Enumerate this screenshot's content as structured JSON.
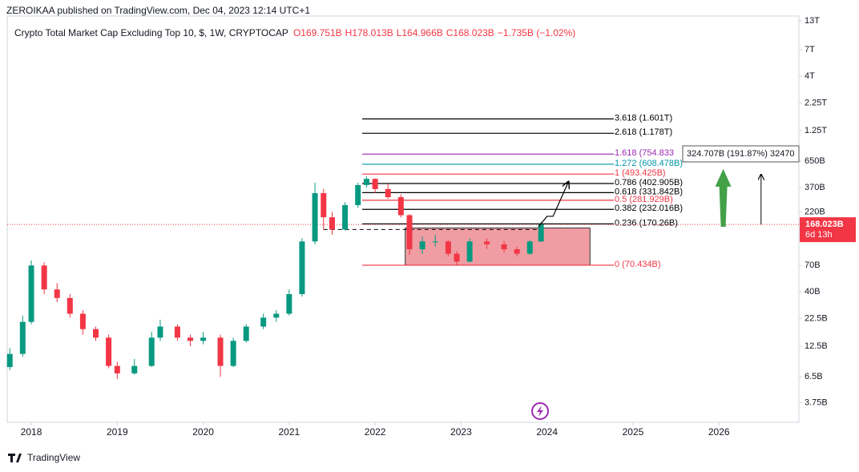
{
  "header": "ZEROIKAA published on TradingView.com, Dec 04, 2023 12:14 UTC+1",
  "footer": "TradingView",
  "chart_data": {
    "type": "candlestick",
    "title": "Crypto Total Market Cap Excluding Top 10, $, 1W, CRYPTOCAP",
    "legend_values": [
      "O169.751B",
      "H178.013B",
      "L164.966B",
      "C168.023B",
      "−1.735B (−1.02%)"
    ],
    "log_scale": true,
    "up_color": "#089981",
    "down_color": "#f23645",
    "x": [
      2017.75,
      2017.9,
      2018.0,
      2018.15,
      2018.3,
      2018.45,
      2018.6,
      2018.75,
      2018.9,
      2019.0,
      2019.2,
      2019.4,
      2019.5,
      2019.7,
      2019.85,
      2020.0,
      2020.2,
      2020.35,
      2020.5,
      2020.7,
      2020.85,
      2021.0,
      2021.15,
      2021.3,
      2021.4,
      2021.5,
      2021.65,
      2021.8,
      2021.9,
      2022.0,
      2022.15,
      2022.3,
      2022.4,
      2022.55,
      2022.7,
      2022.85,
      2022.95,
      2023.1,
      2023.3,
      2023.5,
      2023.65,
      2023.8,
      2023.93
    ],
    "open": [
      8,
      10.6,
      21,
      70,
      42,
      35,
      25,
      18,
      15,
      8.2,
      7,
      8.2,
      15,
      19,
      15,
      14,
      15,
      8.2,
      14,
      19,
      23,
      25,
      38,
      117,
      328,
      196,
      151,
      254,
      390,
      445,
      358,
      301,
      205,
      99,
      117,
      117,
      90,
      76,
      117,
      110,
      99,
      90,
      117
    ],
    "high": [
      12,
      24,
      78,
      75,
      48,
      38,
      27,
      19,
      16,
      9,
      9.5,
      17,
      22,
      20,
      16,
      17,
      16,
      15,
      20,
      25,
      27,
      42,
      125,
      410,
      360,
      220,
      270,
      410,
      470,
      450,
      400,
      320,
      210,
      130,
      135,
      120,
      95,
      125,
      125,
      118,
      104,
      120,
      178
    ],
    "low": [
      7.5,
      10,
      20,
      38,
      32,
      23,
      16,
      14,
      7.8,
      6.2,
      6.8,
      8,
      14,
      14,
      12.5,
      13,
      6.5,
      8,
      13.5,
      18,
      21,
      24,
      36,
      110,
      150,
      135,
      148,
      240,
      370,
      330,
      290,
      195,
      88,
      90,
      105,
      85,
      70,
      75,
      100,
      92,
      86,
      88,
      115
    ],
    "close": [
      10.6,
      21,
      70,
      42,
      35,
      25,
      18,
      15,
      8.2,
      7,
      8.2,
      15,
      19,
      15,
      14,
      15,
      8.2,
      14,
      19,
      23,
      25,
      38,
      117,
      328,
      196,
      151,
      254,
      390,
      445,
      358,
      301,
      205,
      99,
      117,
      117,
      90,
      76,
      117,
      110,
      99,
      90,
      117,
      168
    ],
    "xlim": [
      2017.72,
      2026.93
    ],
    "xticks": [
      2018,
      2019,
      2020,
      2021,
      2022,
      2023,
      2024,
      2025,
      2026
    ],
    "ylim": [
      2.46,
      14400
    ],
    "yticks": [
      {
        "value": 13000,
        "label": "13T"
      },
      {
        "value": 7000,
        "label": "7T"
      },
      {
        "value": 4000,
        "label": "4T"
      },
      {
        "value": 2250,
        "label": "2.25T"
      },
      {
        "value": 1250,
        "label": "1.25T"
      },
      {
        "value": 650,
        "label": "650B"
      },
      {
        "value": 370,
        "label": "370B"
      },
      {
        "value": 220,
        "label": "220B"
      },
      {
        "value": 70,
        "label": "70B"
      },
      {
        "value": 40,
        "label": "40B"
      },
      {
        "value": 22.5,
        "label": "22.5B"
      },
      {
        "value": 12.5,
        "label": "12.5B"
      },
      {
        "value": 6.5,
        "label": "6.5B"
      },
      {
        "value": 3.75,
        "label": "3.75B"
      }
    ],
    "current_price": {
      "value": 168.023,
      "label": "168.023B",
      "countdown": "6d 13h",
      "color": "#f23645"
    },
    "fib_x": [
      2021.85,
      2024.8
    ],
    "fib_levels": [
      {
        "value": 1601,
        "label": "3.618 (1.601T)",
        "color": "#000000"
      },
      {
        "value": 1178,
        "label": "2.618 (1.178T)",
        "color": "#000000"
      },
      {
        "value": 754.833,
        "label": "1.618 (754.833",
        "color": "#9c27b0"
      },
      {
        "value": 608.478,
        "label": "1.272 (608.478B)",
        "color": "#0097a7"
      },
      {
        "value": 493.425,
        "label": "1 (493.425B)",
        "color": "#f23645"
      },
      {
        "value": 402.905,
        "label": "0.786 (402.905B)",
        "color": "#000000"
      },
      {
        "value": 331.842,
        "label": "0.618 (331.842B)",
        "color": "#000000"
      },
      {
        "value": 281.929,
        "label": "0.5 (281.929B)",
        "color": "#f23645"
      },
      {
        "value": 232.016,
        "label": "0.382 (232.016B)",
        "color": "#000000"
      },
      {
        "value": 170.26,
        "label": "0.236 (170.26B)",
        "color": "#000000"
      },
      {
        "value": 70.434,
        "label": "0 (70.434B)",
        "color": "#f23645"
      }
    ],
    "range_box": {
      "x": [
        2022.35,
        2024.5
      ],
      "y": [
        70.434,
        156
      ]
    },
    "breakout_line": {
      "x": [
        2021.4,
        2023.9
      ],
      "y": [
        151,
        151
      ]
    },
    "projection": {
      "x": [
        2023.9,
        2024.0,
        2024.07,
        2024.25
      ],
      "y": [
        160,
        200,
        200,
        420
      ]
    },
    "measure_label": "324.707B (191.87%) 32470",
    "green_arrow": {
      "x": 2026.05,
      "y": [
        160,
        549
      ]
    },
    "black_arrow": {
      "x": 2026.49,
      "y": [
        168,
        490
      ]
    }
  }
}
